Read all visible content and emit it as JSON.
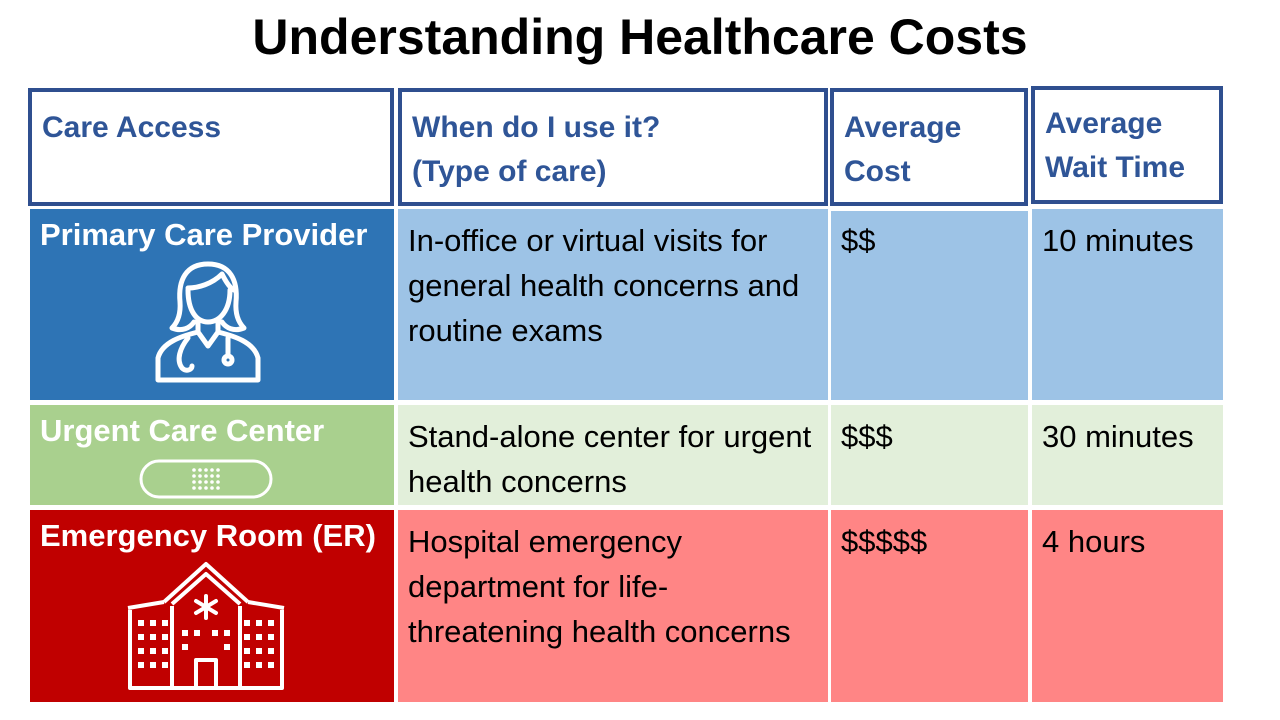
{
  "title": "Understanding Healthcare Costs",
  "headers": {
    "care_access": "Care Access",
    "when_line1": "When do I use it?",
    "when_line2": "(Type of care)",
    "cost_line1": "Average",
    "cost_line2": "Cost",
    "wait_line1": "Average",
    "wait_line2": "Wait Time"
  },
  "rows": [
    {
      "name": "Primary Care Provider",
      "when": "In-office or virtual visits for general health concerns and routine exams",
      "cost": "$$",
      "wait": "10 minutes",
      "icon": "doctor-icon"
    },
    {
      "name": "Urgent Care Center",
      "when": "Stand-alone center for urgent health concerns",
      "cost": "$$$",
      "wait": "30 minutes",
      "icon": "bandage-icon"
    },
    {
      "name": "Emergency Room (ER)",
      "when": "Hospital emergency department for life-threatening health concerns",
      "cost": "$$$$$",
      "wait": "4 hours",
      "icon": "hospital-icon"
    }
  ],
  "colors": {
    "header_text": "#2f5597",
    "header_border": "#2f4f8f",
    "primary_dark": "#2e74b5",
    "primary_light": "#9dc3e6",
    "urgent_dark": "#a9d08e",
    "urgent_light": "#e2efda",
    "er_dark": "#c00000",
    "er_light": "#ff8585"
  }
}
